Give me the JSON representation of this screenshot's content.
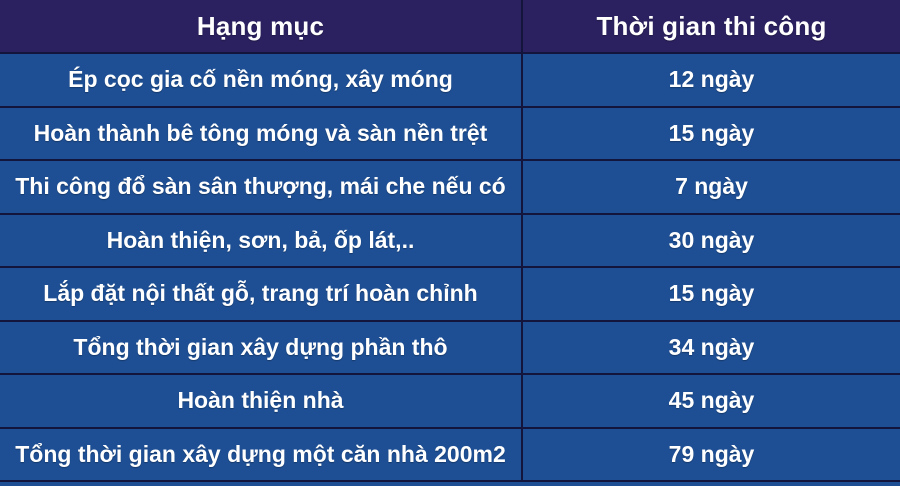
{
  "colors": {
    "header_bg": "#2b2160",
    "row_bg": "#1e4f94",
    "line": "#13153c",
    "text": "#ffffff"
  },
  "chart_data": {
    "type": "table",
    "columns": [
      "Hạng mục",
      "Thời gian thi công"
    ],
    "rows": [
      {
        "item": "Ép cọc gia cố nền móng, xây móng",
        "duration": "12 ngày"
      },
      {
        "item": "Hoàn thành bê tông móng và sàn nền trệt",
        "duration": "15 ngày"
      },
      {
        "item": "Thi công đổ sàn sân thượng, mái che nếu có",
        "duration": "7 ngày"
      },
      {
        "item": "Hoàn thiện, sơn, bả, ốp lát,..",
        "duration": "30 ngày"
      },
      {
        "item": "Lắp đặt nội thất gỗ, trang trí hoàn chỉnh",
        "duration": "15 ngày"
      },
      {
        "item": "Tổng thời gian xây dựng phần thô",
        "duration": "34 ngày"
      },
      {
        "item": "Hoàn thiện nhà",
        "duration": "45 ngày"
      },
      {
        "item": "Tổng thời gian xây dựng một căn nhà 200m2",
        "duration": "79 ngày"
      }
    ]
  }
}
